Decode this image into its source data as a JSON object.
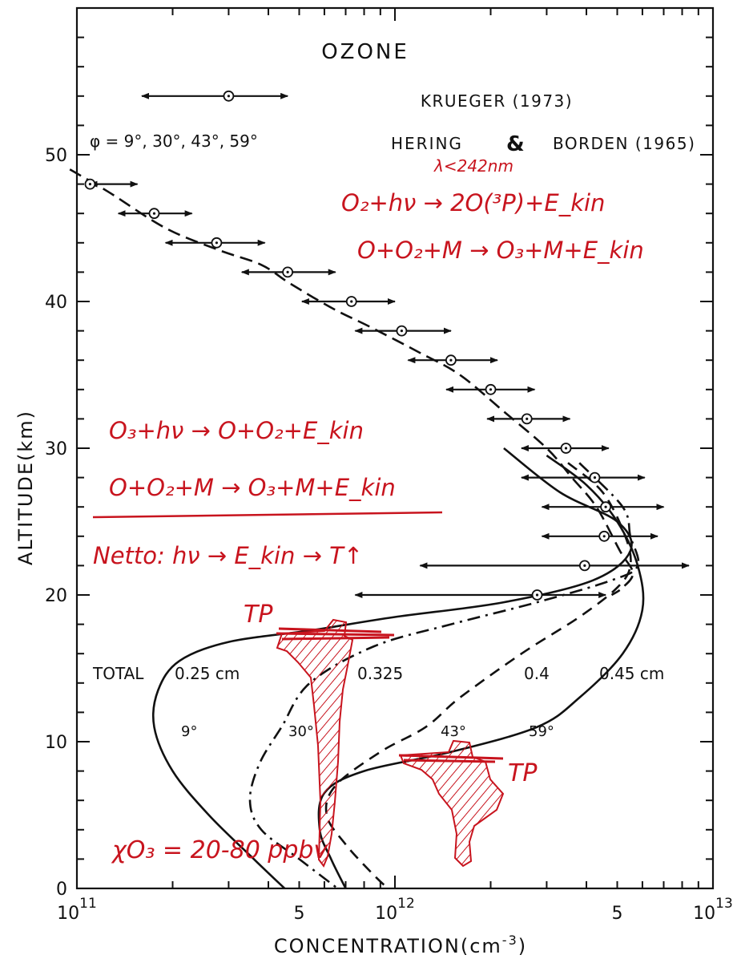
{
  "chart_data": {
    "type": "line",
    "title": "OZONE",
    "xlabel": "CONCENTRATION(cm",
    "xlabel_exp": "-3",
    "xlabel_close": ")",
    "ylabel": "ALTITUDE(km)",
    "x_scale": "log",
    "xlim": [
      100000000000.0,
      10000000000000.0
    ],
    "ylim": [
      0,
      60
    ],
    "x_ticks": [
      {
        "value": 100000000000.0,
        "base": "10",
        "exp": "11"
      },
      {
        "value": 500000000000.0,
        "base": "5",
        "exp": ""
      },
      {
        "value": 1000000000000.0,
        "base": "10",
        "exp": "12"
      },
      {
        "value": 5000000000000.0,
        "base": "5",
        "exp": ""
      },
      {
        "value": 10000000000000.0,
        "base": "10",
        "exp": "13"
      }
    ],
    "y_ticks": [
      0,
      10,
      20,
      30,
      40,
      50
    ],
    "grid": false,
    "legend": {
      "krueger_label": "KRUEGER (1973)",
      "hering_a": "HERING",
      "amp": "&",
      "hering_b": "BORDEN (1965)",
      "latitudes_label": "φ = 9°, 30°, 43°, 59°"
    },
    "totals": {
      "prefix": "TOTAL",
      "values": [
        "0.25 cm",
        "0.325",
        "0.4",
        "0.45 cm"
      ]
    },
    "series": [
      {
        "name": "9°",
        "style": "solid",
        "points": [
          [
            2200000000000.0,
            30
          ],
          [
            3300000000000.0,
            27
          ],
          [
            5000000000000.0,
            25
          ],
          [
            5500000000000.0,
            23
          ],
          [
            4200000000000.0,
            21
          ],
          [
            2200000000000.0,
            19.5
          ],
          [
            1000000000000.0,
            18.5
          ],
          [
            550000000000.0,
            17.6
          ],
          [
            300000000000.0,
            16.8
          ],
          [
            210000000000.0,
            15.5
          ],
          [
            180000000000.0,
            13.5
          ],
          [
            175000000000.0,
            11
          ],
          [
            200000000000.0,
            8
          ],
          [
            260000000000.0,
            5
          ],
          [
            360000000000.0,
            2
          ],
          [
            450000000000.0,
            0
          ]
        ]
      },
      {
        "name": "30°",
        "style": "dash-dot",
        "points": [
          [
            3800000000000.0,
            29
          ],
          [
            5200000000000.0,
            26
          ],
          [
            5500000000000.0,
            24
          ],
          [
            5800000000000.0,
            22
          ],
          [
            4800000000000.0,
            21
          ],
          [
            2800000000000.0,
            19.5
          ],
          [
            1500000000000.0,
            18
          ],
          [
            860000000000.0,
            16.5
          ],
          [
            540000000000.0,
            14
          ],
          [
            440000000000.0,
            11
          ],
          [
            375000000000.0,
            8.5
          ],
          [
            350000000000.0,
            6
          ],
          [
            380000000000.0,
            4
          ],
          [
            500000000000.0,
            2
          ],
          [
            660000000000.0,
            0
          ]
        ]
      },
      {
        "name": "43°",
        "style": "dashed",
        "points": [
          [
            3500000000000.0,
            29
          ],
          [
            4500000000000.0,
            27
          ],
          [
            5300000000000.0,
            24
          ],
          [
            5500000000000.0,
            22
          ],
          [
            5000000000000.0,
            20.5
          ],
          [
            3800000000000.0,
            18.5
          ],
          [
            2500000000000.0,
            16
          ],
          [
            1600000000000.0,
            13
          ],
          [
            1250000000000.0,
            11
          ],
          [
            900000000000.0,
            9.3
          ],
          [
            650000000000.0,
            7
          ],
          [
            610000000000.0,
            5
          ],
          [
            700000000000.0,
            3
          ],
          [
            850000000000.0,
            1
          ],
          [
            950000000000.0,
            0
          ]
        ]
      },
      {
        "name": "59°",
        "style": "solid",
        "points": [
          [
            3000000000000.0,
            29.5
          ],
          [
            4000000000000.0,
            27.5
          ],
          [
            5000000000000.0,
            25
          ],
          [
            5800000000000.0,
            22
          ],
          [
            6000000000000.0,
            19
          ],
          [
            5200000000000.0,
            16
          ],
          [
            3800000000000.0,
            13
          ],
          [
            2800000000000.0,
            11
          ],
          [
            1500000000000.0,
            9.3
          ],
          [
            800000000000.0,
            8
          ],
          [
            600000000000.0,
            6.5
          ],
          [
            580000000000.0,
            4
          ],
          [
            630000000000.0,
            2
          ],
          [
            700000000000.0,
            0
          ]
        ]
      },
      {
        "name": "KRUEGER (1973)",
        "style": "long-dashed",
        "points": [
          [
            95000000000.0,
            49
          ],
          [
            125000000000.0,
            47.5
          ],
          [
            190000000000.0,
            45
          ],
          [
            280000000000.0,
            43.5
          ],
          [
            380000000000.0,
            42.5
          ],
          [
            470000000000.0,
            41.2
          ],
          [
            640000000000.0,
            39.5
          ],
          [
            830000000000.0,
            38.3
          ],
          [
            1200000000000.0,
            36.5
          ],
          [
            1600000000000.0,
            35
          ],
          [
            2200000000000.0,
            32.5
          ],
          [
            3000000000000.0,
            30
          ],
          [
            3600000000000.0,
            28
          ],
          [
            4300000000000.0,
            26
          ],
          [
            5100000000000.0,
            23
          ],
          [
            5600000000000.0,
            21.5
          ],
          [
            5200000000000.0,
            20.5
          ],
          [
            4800000000000.0,
            20
          ]
        ]
      }
    ],
    "krueger_points": [
      {
        "y": 48,
        "x": 110000000000.0,
        "lo": 110000000000.0,
        "hi": 155000000000.0
      },
      {
        "y": 46,
        "x": 175000000000.0,
        "lo": 135000000000.0,
        "hi": 230000000000.0
      },
      {
        "y": 44,
        "x": 275000000000.0,
        "lo": 190000000000.0,
        "hi": 390000000000.0
      },
      {
        "y": 42,
        "x": 460000000000.0,
        "lo": 330000000000.0,
        "hi": 650000000000.0
      },
      {
        "y": 40,
        "x": 730000000000.0,
        "lo": 510000000000.0,
        "hi": 1000000000000.0
      },
      {
        "y": 38,
        "x": 1050000000000.0,
        "lo": 750000000000.0,
        "hi": 1500000000000.0
      },
      {
        "y": 36,
        "x": 1500000000000.0,
        "lo": 1100000000000.0,
        "hi": 2100000000000.0
      },
      {
        "y": 34,
        "x": 2000000000000.0,
        "lo": 1450000000000.0,
        "hi": 2750000000000.0
      },
      {
        "y": 32,
        "x": 2600000000000.0,
        "lo": 1950000000000.0,
        "hi": 3550000000000.0
      },
      {
        "y": 30,
        "x": 3450000000000.0,
        "lo": 2500000000000.0,
        "hi": 4700000000000.0
      },
      {
        "y": 28,
        "x": 4250000000000.0,
        "lo": 2500000000000.0,
        "hi": 6100000000000.0
      },
      {
        "y": 26,
        "x": 4600000000000.0,
        "lo": 2900000000000.0,
        "hi": 7000000000000.0
      },
      {
        "y": 24,
        "x": 4550000000000.0,
        "lo": 2900000000000.0,
        "hi": 6700000000000.0
      },
      {
        "y": 22,
        "x": 3950000000000.0,
        "lo": 1200000000000.0,
        "hi": 8400000000000.0
      },
      {
        "y": 20,
        "x": 2800000000000.0,
        "lo": 750000000000.0,
        "hi": 4600000000000.0
      }
    ],
    "hering_borden_sample": {
      "y": 54,
      "x": 300000000000.0,
      "lo": 160000000000.0,
      "hi": 460000000000.0
    },
    "annotations": {
      "lambda": "λ<242nm",
      "eq1": "O₂+hν → 2O(³P)+E_kin",
      "eq2": "O+O₂+M → O₃+M+E_kin",
      "eq3": "O₃+hν → O+O₂+E_kin",
      "eq4": "O+O₂+M → O₃+M+E_kin",
      "eq5": "Netto: hν → E_kin → T↑",
      "tp1": "TP",
      "tp2": "TP",
      "chi": "χO₃ = 20-80 ppbv"
    },
    "colors": {
      "ink": "#111111",
      "handwriting": "#c8141e"
    }
  }
}
